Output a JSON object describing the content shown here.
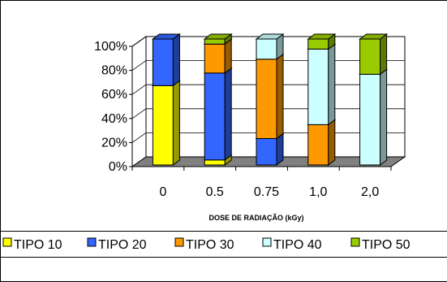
{
  "chart_data": {
    "type": "bar",
    "stacked": true,
    "percent_stacked": true,
    "three_d": true,
    "title": "",
    "xlabel": "DOSE DE RADIAÇÃO (kGy)",
    "ylabel": "",
    "ylim": [
      0,
      100
    ],
    "yticks": [
      "0%",
      "20%",
      "40%",
      "60%",
      "80%",
      "100%"
    ],
    "categories": [
      "0",
      "0.5",
      "0.75",
      "1,0",
      "2,0"
    ],
    "series": [
      {
        "name": "TIPO 10",
        "color": "#ffff00",
        "values": [
          63,
          4,
          0,
          0,
          0
        ]
      },
      {
        "name": "TIPO 20",
        "color": "#3366ff",
        "values": [
          37,
          69,
          21,
          0,
          0
        ]
      },
      {
        "name": "TIPO 30",
        "color": "#ff9900",
        "values": [
          0,
          23,
          63,
          32,
          0
        ]
      },
      {
        "name": "TIPO 40",
        "color": "#ccffff",
        "values": [
          0,
          0,
          16,
          60,
          72
        ]
      },
      {
        "name": "TIPO 50",
        "color": "#99cc00",
        "values": [
          0,
          4,
          0,
          8,
          28
        ]
      }
    ],
    "grid": true,
    "legend_position": "bottom"
  }
}
